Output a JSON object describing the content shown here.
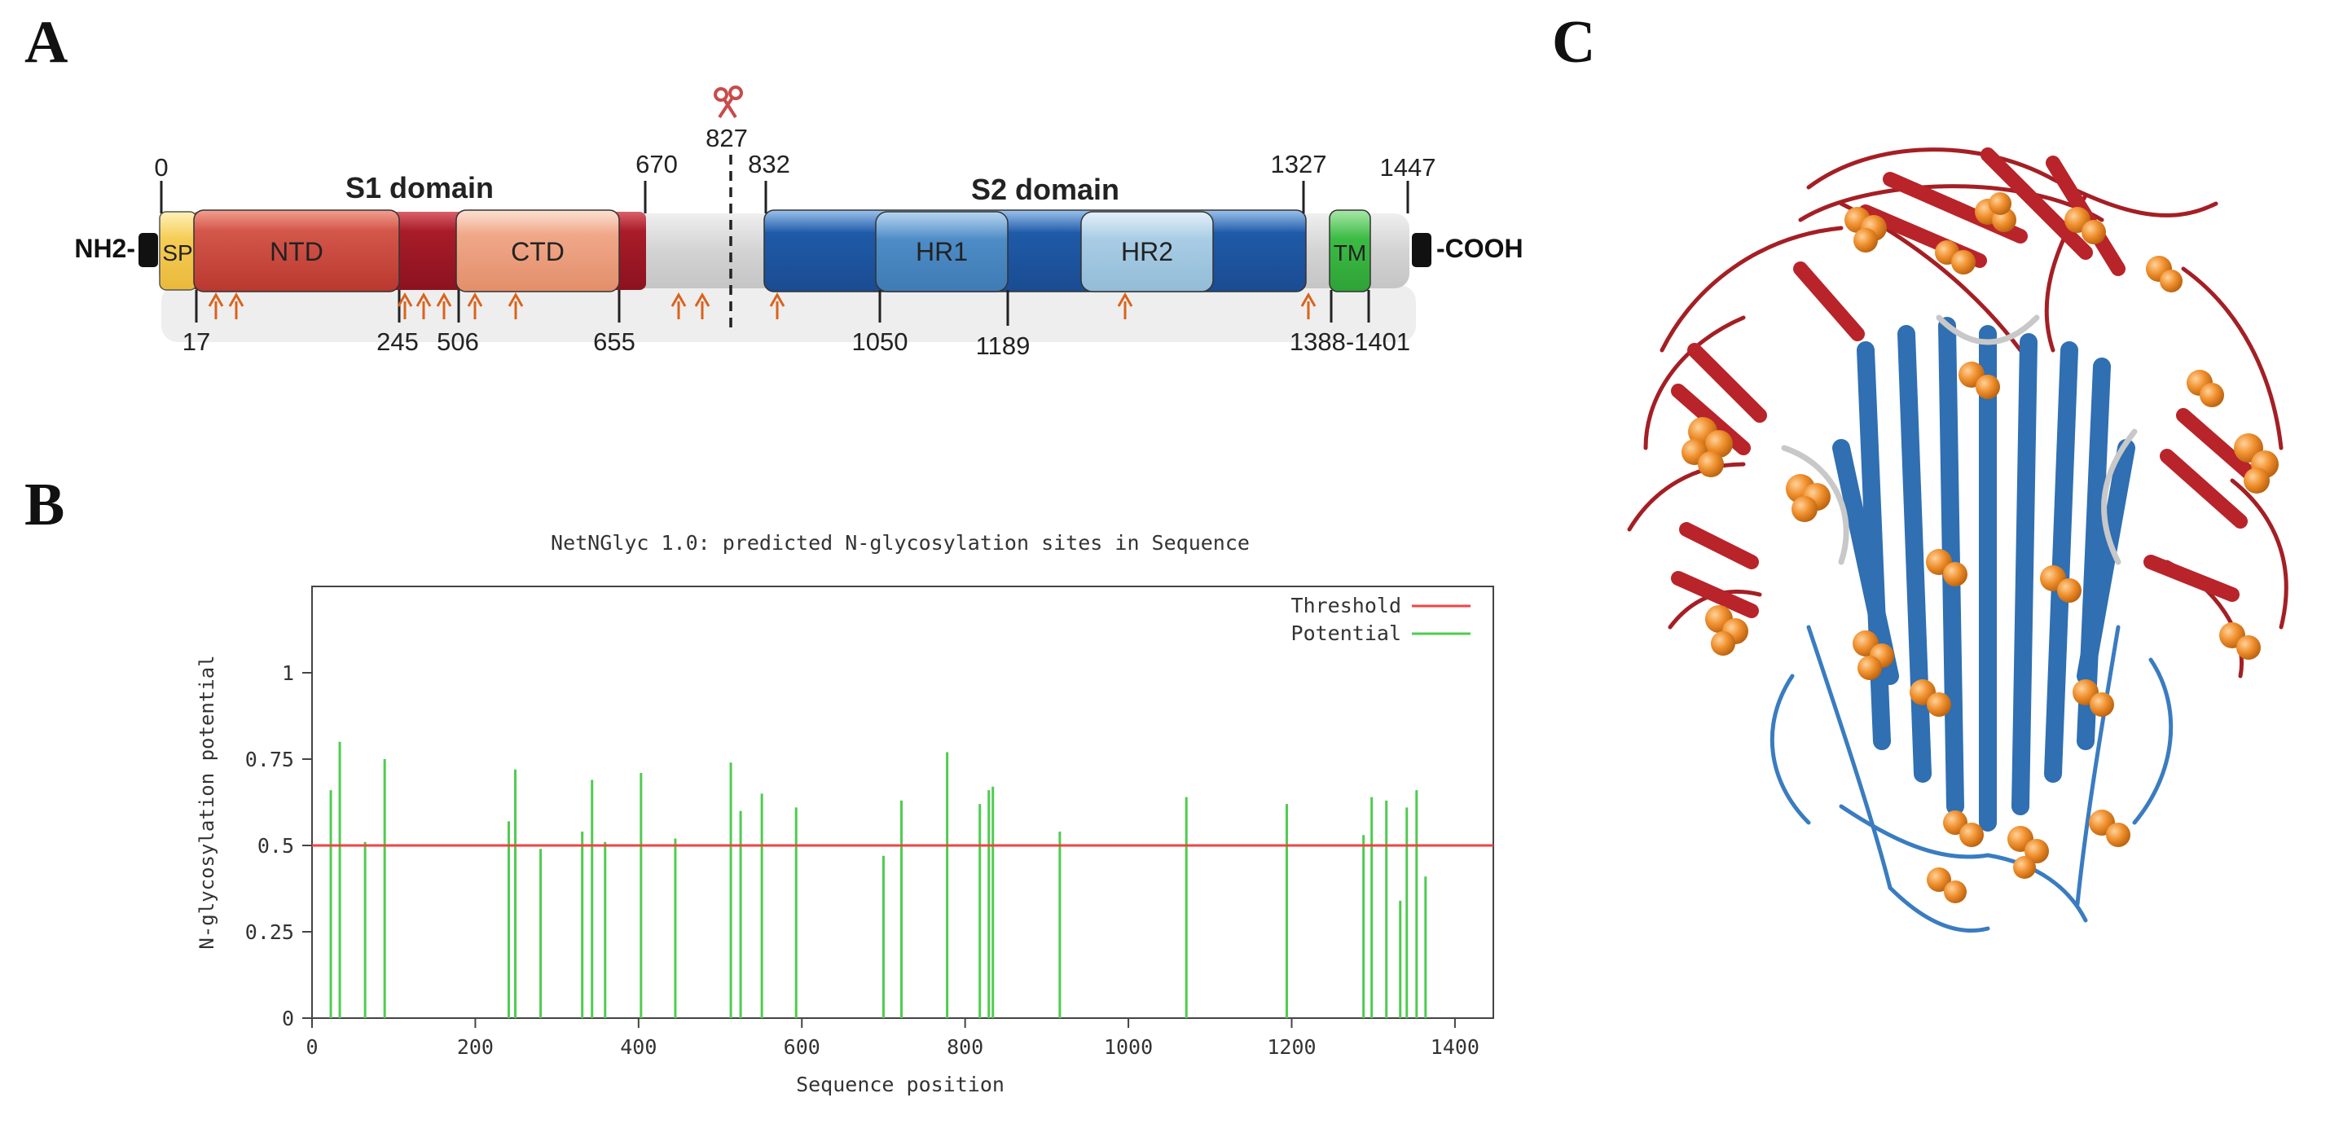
{
  "panels": {
    "a": "A",
    "b": "B",
    "c": "C"
  },
  "domain_map": {
    "n_term": "NH2-",
    "c_term": "-COOH",
    "s1_title": "S1 domain",
    "s2_title": "S2 domain",
    "segments": {
      "sp": "SP",
      "ntd": "NTD",
      "ctd": "CTD",
      "hr1": "HR1",
      "hr2": "HR2",
      "tm": "TM"
    },
    "top_positions": {
      "p0": "0",
      "p670": "670",
      "p827": "827",
      "p832": "832",
      "p1327": "1327",
      "p1447": "1447"
    },
    "bottom_positions": {
      "p17": "17",
      "p245": "245",
      "p506": "506",
      "p655": "655",
      "p1050": "1050",
      "p1189": "1189",
      "p1388": "1388-1401"
    },
    "colors": {
      "sp": "#f5cc55",
      "ntd": "#d4574b",
      "s1_dark": "#a81c28",
      "ctd": "#f0a889",
      "s2": "#1f5aa8",
      "hr1": "#4d8cc6",
      "hr2": "#a8cce4",
      "tm": "#3cbb44",
      "backbone": "#d3d3d3",
      "arrow": "#d9631c"
    }
  },
  "chart_data": {
    "type": "bar",
    "title": "NetNGlyc 1.0: predicted N-glycosylation sites in Sequence",
    "xlabel": "Sequence position",
    "ylabel": "N-glycosylation potential",
    "xlim": [
      0,
      1447
    ],
    "ylim": [
      0,
      1.25
    ],
    "xticks": [
      "0",
      "200",
      "400",
      "600",
      "800",
      "1000",
      "1200",
      "1400"
    ],
    "yticks": [
      "0",
      "0.25",
      "0.5",
      "0.75",
      "1"
    ],
    "threshold": 0.5,
    "legend": [
      {
        "name": "Threshold",
        "color": "#ef4444"
      },
      {
        "name": "Potential",
        "color": "#4fcc4f"
      }
    ],
    "legend_position": "top-right",
    "x": [
      23,
      34,
      65,
      89,
      241,
      249,
      280,
      331,
      343,
      359,
      403,
      445,
      513,
      525,
      551,
      593,
      700,
      722,
      778,
      818,
      829,
      834,
      916,
      1071,
      1194,
      1288,
      1298,
      1316,
      1333,
      1341,
      1353,
      1364
    ],
    "values": [
      0.66,
      0.8,
      0.51,
      0.75,
      0.57,
      0.72,
      0.49,
      0.54,
      0.69,
      0.51,
      0.71,
      0.52,
      0.74,
      0.6,
      0.65,
      0.61,
      0.47,
      0.63,
      0.77,
      0.62,
      0.66,
      0.67,
      0.54,
      0.64,
      0.62,
      0.53,
      0.64,
      0.63,
      0.34,
      0.61,
      0.66,
      0.41
    ]
  }
}
